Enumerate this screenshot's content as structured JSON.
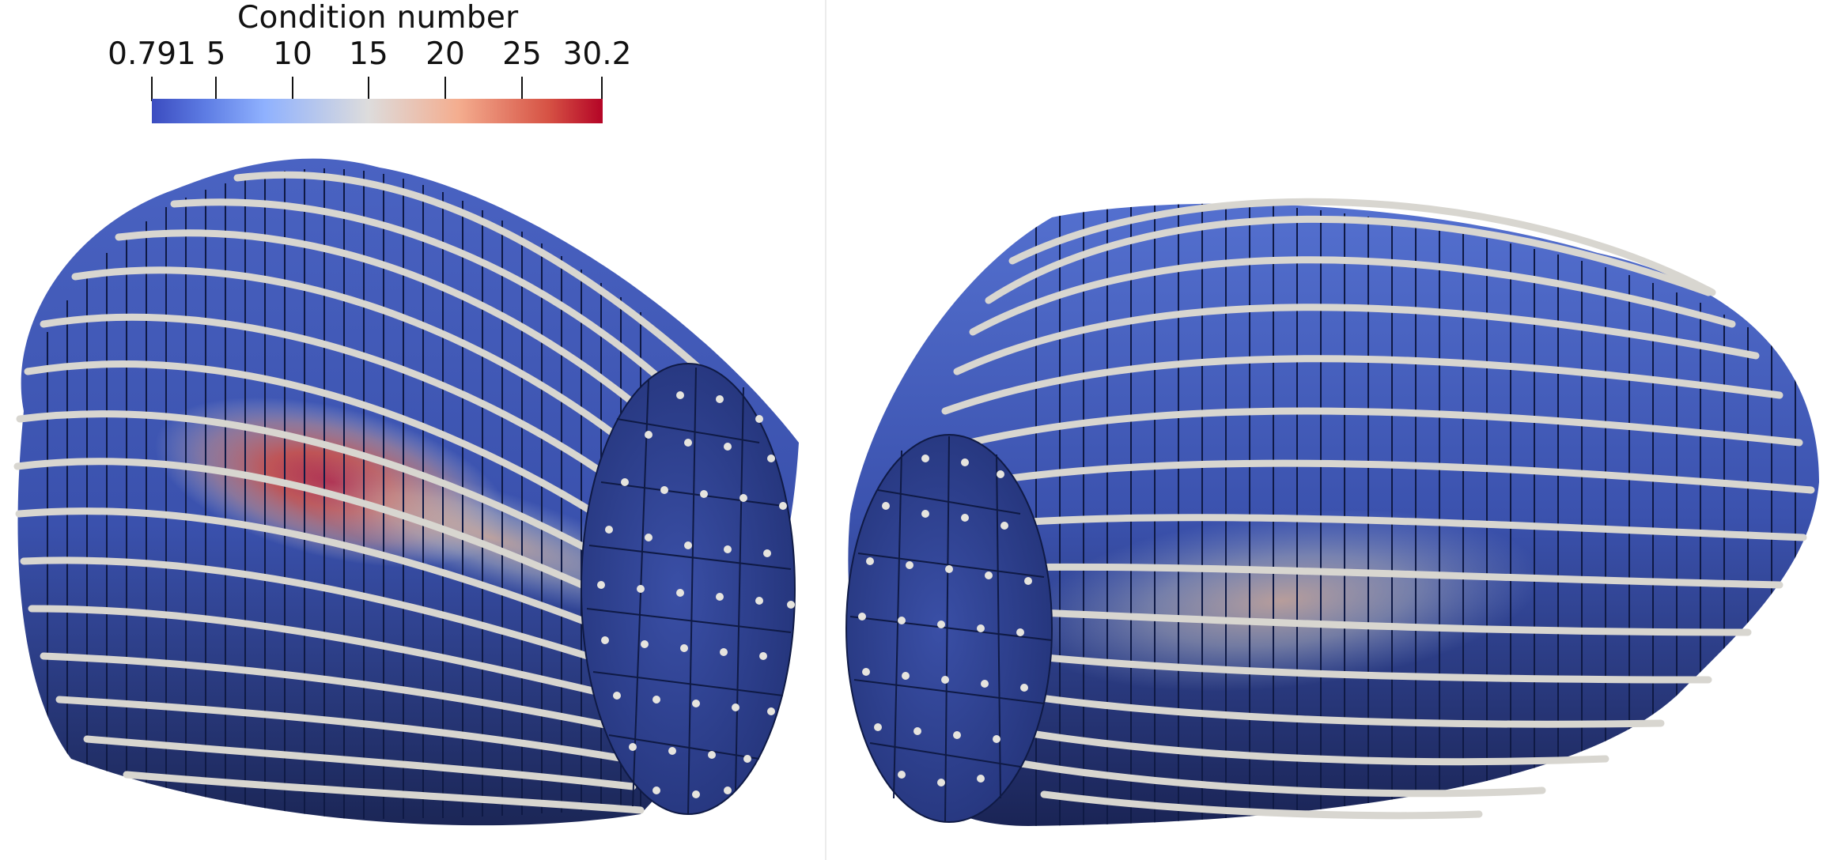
{
  "legend": {
    "title": "Condition number",
    "ticks": [
      "0.791",
      "5",
      "10",
      "15",
      "20",
      "25",
      "30.2"
    ]
  },
  "colors": {
    "mesh_blue": "#3d55b0",
    "mesh_dark": "#1c2a5e",
    "hot_red": "#b40426",
    "fiber": "#d8d6d0",
    "endcap": "#2f4496"
  }
}
